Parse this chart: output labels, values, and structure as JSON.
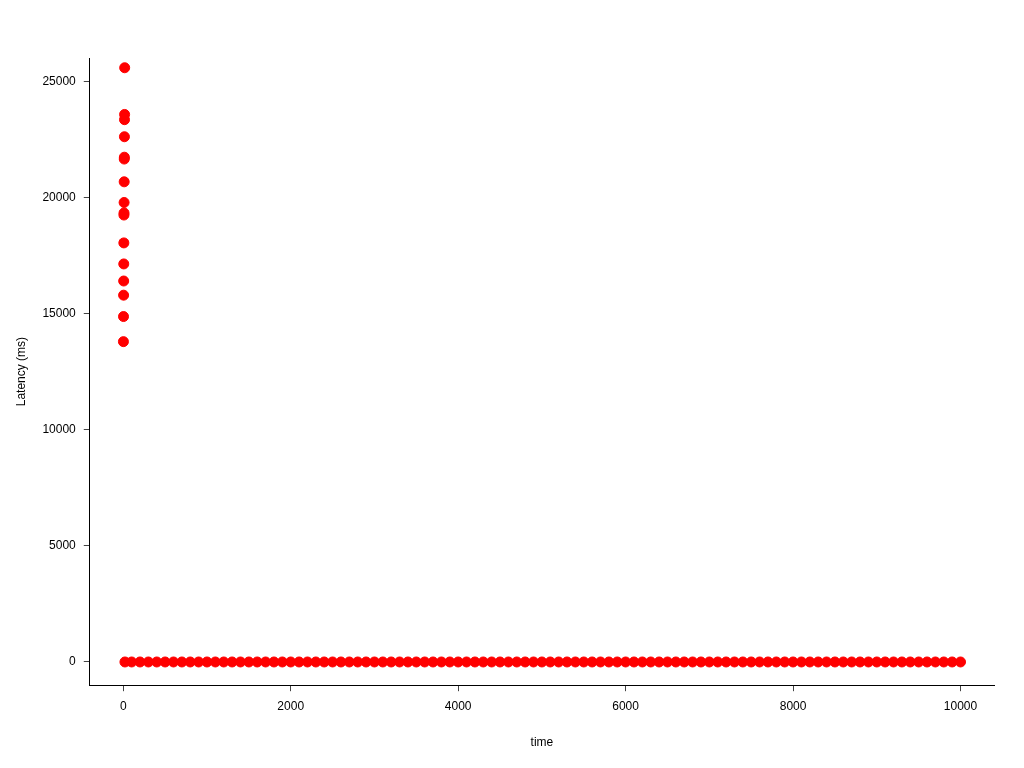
{
  "chart_data": {
    "type": "scatter",
    "xlabel": "time",
    "ylabel": "Latency (ms)",
    "xlim": [
      -400,
      10400
    ],
    "ylim": [
      -1000,
      26000
    ],
    "xticks": [
      0,
      2000,
      4000,
      6000,
      8000,
      10000
    ],
    "yticks": [
      0,
      5000,
      10000,
      15000,
      20000,
      25000
    ],
    "grid": false,
    "legend": false,
    "marker": "circle",
    "series": [
      {
        "color": "#ff0000",
        "x": [
          2,
          3,
          4,
          5,
          6,
          7,
          8,
          9,
          10,
          11,
          12,
          13,
          14,
          15,
          16,
          17,
          20,
          100,
          200,
          300,
          400,
          500,
          600,
          700,
          800,
          900,
          1000,
          1100,
          1200,
          1300,
          1400,
          1500,
          1600,
          1700,
          1800,
          1900,
          2000,
          2100,
          2200,
          2300,
          2400,
          2500,
          2600,
          2700,
          2800,
          2900,
          3000,
          3100,
          3200,
          3300,
          3400,
          3500,
          3600,
          3700,
          3800,
          3900,
          4000,
          4100,
          4200,
          4300,
          4400,
          4500,
          4600,
          4700,
          4800,
          4900,
          5000,
          5100,
          5200,
          5300,
          5400,
          5500,
          5600,
          5700,
          5800,
          5900,
          6000,
          6100,
          6200,
          6300,
          6400,
          6500,
          6600,
          6700,
          6800,
          6900,
          7000,
          7100,
          7200,
          7300,
          7400,
          7500,
          7600,
          7700,
          7800,
          7900,
          8000,
          8100,
          8200,
          8300,
          8400,
          8500,
          8600,
          8700,
          8800,
          8900,
          9000,
          9100,
          9200,
          9300,
          9400,
          9500,
          9600,
          9700,
          9800,
          9900,
          10000
        ],
        "values": [
          13790,
          14870,
          15790,
          16400,
          17135,
          18040,
          19240,
          19330,
          19780,
          20670,
          21650,
          21730,
          22610,
          23345,
          23570,
          25580,
          0,
          0,
          0,
          0,
          0,
          0,
          0,
          0,
          0,
          0,
          0,
          0,
          0,
          0,
          0,
          0,
          0,
          0,
          0,
          0,
          0,
          0,
          0,
          0,
          0,
          0,
          0,
          0,
          0,
          0,
          0,
          0,
          0,
          0,
          0,
          0,
          0,
          0,
          0,
          0,
          0,
          0,
          0,
          0,
          0,
          0,
          0,
          0,
          0,
          0,
          0,
          0,
          0,
          0,
          0,
          0,
          0,
          0,
          0,
          0,
          0,
          0,
          0,
          0,
          0,
          0,
          0,
          0,
          0,
          0,
          0,
          0,
          0,
          0,
          0,
          0,
          0,
          0,
          0,
          0,
          0,
          0,
          0,
          0,
          0,
          0,
          0,
          0,
          0,
          0,
          0,
          0,
          0,
          0,
          0,
          0,
          0,
          0,
          0,
          0,
          0
        ]
      }
    ]
  }
}
